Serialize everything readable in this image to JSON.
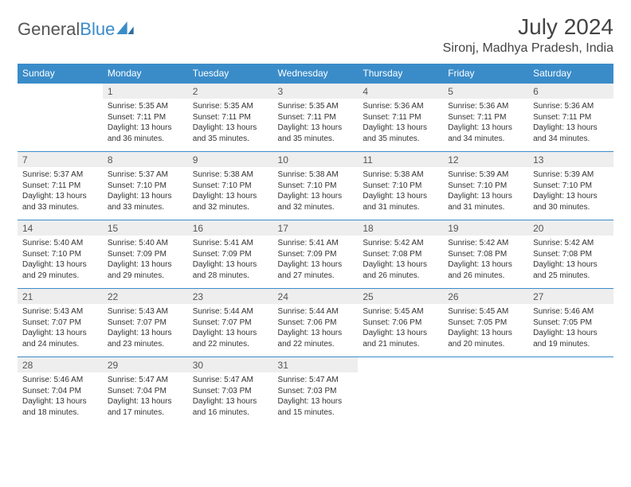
{
  "logo": {
    "text1": "General",
    "text2": "Blue"
  },
  "title": "July 2024",
  "location": "Sironj, Madhya Pradesh, India",
  "colors": {
    "header_bg": "#3a8cc9",
    "header_text": "#ffffff",
    "daynum_bg": "#eeeeee",
    "rule": "#3a8cc9",
    "body_text": "#333333"
  },
  "weekdays": [
    "Sunday",
    "Monday",
    "Tuesday",
    "Wednesday",
    "Thursday",
    "Friday",
    "Saturday"
  ],
  "weeks": [
    [
      null,
      {
        "n": "1",
        "sr": "Sunrise: 5:35 AM",
        "ss": "Sunset: 7:11 PM",
        "d1": "Daylight: 13 hours",
        "d2": "and 36 minutes."
      },
      {
        "n": "2",
        "sr": "Sunrise: 5:35 AM",
        "ss": "Sunset: 7:11 PM",
        "d1": "Daylight: 13 hours",
        "d2": "and 35 minutes."
      },
      {
        "n": "3",
        "sr": "Sunrise: 5:35 AM",
        "ss": "Sunset: 7:11 PM",
        "d1": "Daylight: 13 hours",
        "d2": "and 35 minutes."
      },
      {
        "n": "4",
        "sr": "Sunrise: 5:36 AM",
        "ss": "Sunset: 7:11 PM",
        "d1": "Daylight: 13 hours",
        "d2": "and 35 minutes."
      },
      {
        "n": "5",
        "sr": "Sunrise: 5:36 AM",
        "ss": "Sunset: 7:11 PM",
        "d1": "Daylight: 13 hours",
        "d2": "and 34 minutes."
      },
      {
        "n": "6",
        "sr": "Sunrise: 5:36 AM",
        "ss": "Sunset: 7:11 PM",
        "d1": "Daylight: 13 hours",
        "d2": "and 34 minutes."
      }
    ],
    [
      {
        "n": "7",
        "sr": "Sunrise: 5:37 AM",
        "ss": "Sunset: 7:11 PM",
        "d1": "Daylight: 13 hours",
        "d2": "and 33 minutes."
      },
      {
        "n": "8",
        "sr": "Sunrise: 5:37 AM",
        "ss": "Sunset: 7:10 PM",
        "d1": "Daylight: 13 hours",
        "d2": "and 33 minutes."
      },
      {
        "n": "9",
        "sr": "Sunrise: 5:38 AM",
        "ss": "Sunset: 7:10 PM",
        "d1": "Daylight: 13 hours",
        "d2": "and 32 minutes."
      },
      {
        "n": "10",
        "sr": "Sunrise: 5:38 AM",
        "ss": "Sunset: 7:10 PM",
        "d1": "Daylight: 13 hours",
        "d2": "and 32 minutes."
      },
      {
        "n": "11",
        "sr": "Sunrise: 5:38 AM",
        "ss": "Sunset: 7:10 PM",
        "d1": "Daylight: 13 hours",
        "d2": "and 31 minutes."
      },
      {
        "n": "12",
        "sr": "Sunrise: 5:39 AM",
        "ss": "Sunset: 7:10 PM",
        "d1": "Daylight: 13 hours",
        "d2": "and 31 minutes."
      },
      {
        "n": "13",
        "sr": "Sunrise: 5:39 AM",
        "ss": "Sunset: 7:10 PM",
        "d1": "Daylight: 13 hours",
        "d2": "and 30 minutes."
      }
    ],
    [
      {
        "n": "14",
        "sr": "Sunrise: 5:40 AM",
        "ss": "Sunset: 7:10 PM",
        "d1": "Daylight: 13 hours",
        "d2": "and 29 minutes."
      },
      {
        "n": "15",
        "sr": "Sunrise: 5:40 AM",
        "ss": "Sunset: 7:09 PM",
        "d1": "Daylight: 13 hours",
        "d2": "and 29 minutes."
      },
      {
        "n": "16",
        "sr": "Sunrise: 5:41 AM",
        "ss": "Sunset: 7:09 PM",
        "d1": "Daylight: 13 hours",
        "d2": "and 28 minutes."
      },
      {
        "n": "17",
        "sr": "Sunrise: 5:41 AM",
        "ss": "Sunset: 7:09 PM",
        "d1": "Daylight: 13 hours",
        "d2": "and 27 minutes."
      },
      {
        "n": "18",
        "sr": "Sunrise: 5:42 AM",
        "ss": "Sunset: 7:08 PM",
        "d1": "Daylight: 13 hours",
        "d2": "and 26 minutes."
      },
      {
        "n": "19",
        "sr": "Sunrise: 5:42 AM",
        "ss": "Sunset: 7:08 PM",
        "d1": "Daylight: 13 hours",
        "d2": "and 26 minutes."
      },
      {
        "n": "20",
        "sr": "Sunrise: 5:42 AM",
        "ss": "Sunset: 7:08 PM",
        "d1": "Daylight: 13 hours",
        "d2": "and 25 minutes."
      }
    ],
    [
      {
        "n": "21",
        "sr": "Sunrise: 5:43 AM",
        "ss": "Sunset: 7:07 PM",
        "d1": "Daylight: 13 hours",
        "d2": "and 24 minutes."
      },
      {
        "n": "22",
        "sr": "Sunrise: 5:43 AM",
        "ss": "Sunset: 7:07 PM",
        "d1": "Daylight: 13 hours",
        "d2": "and 23 minutes."
      },
      {
        "n": "23",
        "sr": "Sunrise: 5:44 AM",
        "ss": "Sunset: 7:07 PM",
        "d1": "Daylight: 13 hours",
        "d2": "and 22 minutes."
      },
      {
        "n": "24",
        "sr": "Sunrise: 5:44 AM",
        "ss": "Sunset: 7:06 PM",
        "d1": "Daylight: 13 hours",
        "d2": "and 22 minutes."
      },
      {
        "n": "25",
        "sr": "Sunrise: 5:45 AM",
        "ss": "Sunset: 7:06 PM",
        "d1": "Daylight: 13 hours",
        "d2": "and 21 minutes."
      },
      {
        "n": "26",
        "sr": "Sunrise: 5:45 AM",
        "ss": "Sunset: 7:05 PM",
        "d1": "Daylight: 13 hours",
        "d2": "and 20 minutes."
      },
      {
        "n": "27",
        "sr": "Sunrise: 5:46 AM",
        "ss": "Sunset: 7:05 PM",
        "d1": "Daylight: 13 hours",
        "d2": "and 19 minutes."
      }
    ],
    [
      {
        "n": "28",
        "sr": "Sunrise: 5:46 AM",
        "ss": "Sunset: 7:04 PM",
        "d1": "Daylight: 13 hours",
        "d2": "and 18 minutes."
      },
      {
        "n": "29",
        "sr": "Sunrise: 5:47 AM",
        "ss": "Sunset: 7:04 PM",
        "d1": "Daylight: 13 hours",
        "d2": "and 17 minutes."
      },
      {
        "n": "30",
        "sr": "Sunrise: 5:47 AM",
        "ss": "Sunset: 7:03 PM",
        "d1": "Daylight: 13 hours",
        "d2": "and 16 minutes."
      },
      {
        "n": "31",
        "sr": "Sunrise: 5:47 AM",
        "ss": "Sunset: 7:03 PM",
        "d1": "Daylight: 13 hours",
        "d2": "and 15 minutes."
      },
      null,
      null,
      null
    ]
  ]
}
